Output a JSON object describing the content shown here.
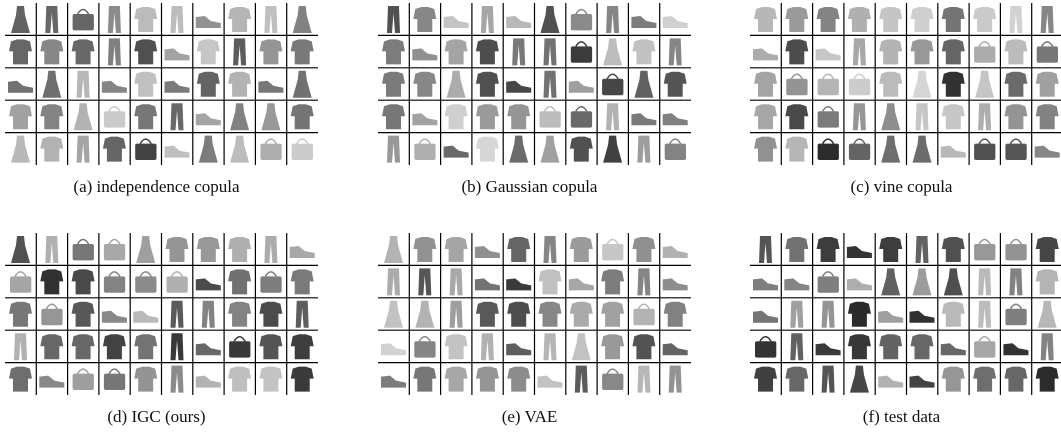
{
  "panels": [
    {
      "caption": "(a) independence copula"
    },
    {
      "caption": "(b) Gaussian copula"
    },
    {
      "caption": "(c) vine copula"
    },
    {
      "caption": "(d) IGC (ours)"
    },
    {
      "caption": "(e) VAE"
    },
    {
      "caption": "(f) test data"
    }
  ]
}
